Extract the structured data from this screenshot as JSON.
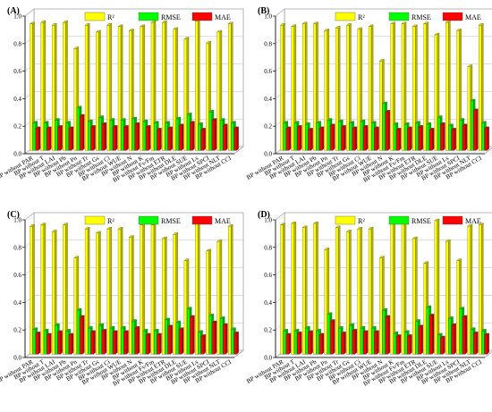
{
  "colors": {
    "r2": "#ffff00",
    "rmse": "#00ff00",
    "mae": "#ff0000"
  },
  "chart_data": [
    {
      "type": "bar",
      "panel_label": "(A)",
      "legend": [
        "R²",
        "RMSE",
        "MAE"
      ],
      "legend_position": "top-right",
      "grid": true,
      "ylim": [
        0,
        1.0
      ],
      "yticks": [
        "0.0",
        "0.2",
        "0.4",
        "0.6",
        "0.8",
        "1.0"
      ],
      "categories": [
        "BP without PAR",
        "BP without T",
        "BP without LAI",
        "BP without Pb",
        "BP without Pn",
        "BP without Tr",
        "BP without Gs",
        "BP without Ci",
        "BP without WUE",
        "BP without N",
        "BP without K",
        "BP without Fv/Fm",
        "BP without ETR",
        "BP without DLE",
        "BP without SUE",
        "BP without Ls",
        "BP without SPCI",
        "BP without NLT",
        "BP without CCI"
      ],
      "series": [
        {
          "name": "R²",
          "values": [
            0.92,
            0.93,
            0.91,
            0.93,
            0.74,
            0.91,
            0.86,
            0.91,
            0.9,
            0.87,
            0.9,
            0.93,
            0.93,
            0.88,
            0.81,
            0.94,
            0.78,
            0.86,
            0.92
          ]
        },
        {
          "name": "RMSE",
          "values": [
            0.2,
            0.2,
            0.22,
            0.2,
            0.31,
            0.21,
            0.24,
            0.22,
            0.22,
            0.23,
            0.21,
            0.2,
            0.2,
            0.23,
            0.26,
            0.19,
            0.28,
            0.22,
            0.2
          ]
        },
        {
          "name": "MAE",
          "values": [
            0.16,
            0.16,
            0.17,
            0.16,
            0.25,
            0.17,
            0.19,
            0.17,
            0.17,
            0.19,
            0.17,
            0.15,
            0.16,
            0.18,
            0.2,
            0.15,
            0.22,
            0.18,
            0.16
          ]
        }
      ]
    },
    {
      "type": "bar",
      "panel_label": "(B)",
      "legend": [
        "R²",
        "RMSE",
        "MAE"
      ],
      "legend_position": "top-right",
      "grid": true,
      "ylim": [
        0,
        1.0
      ],
      "yticks": [
        "0.0",
        "0.2",
        "0.4",
        "0.6",
        "0.8",
        "1.0"
      ],
      "categories": [
        "BP without PAR",
        "BP without T",
        "BP without LAI",
        "BP without Pb",
        "BP without Pn",
        "BP without Tr",
        "BP without Gs",
        "BP without Ci",
        "BP without WUE",
        "BP without N",
        "BP without K",
        "BP without Fv/Fm",
        "BP without ETR",
        "BP without DLE",
        "BP without SUE",
        "BP without Ls",
        "BP without SPCI",
        "BP without NLT",
        "BP without CCI"
      ],
      "series": [
        {
          "name": "R²",
          "values": [
            0.91,
            0.9,
            0.92,
            0.92,
            0.87,
            0.89,
            0.91,
            0.88,
            0.9,
            0.65,
            0.92,
            0.92,
            0.9,
            0.92,
            0.84,
            0.93,
            0.87,
            0.61,
            0.91
          ]
        },
        {
          "name": "RMSE",
          "values": [
            0.2,
            0.2,
            0.19,
            0.2,
            0.22,
            0.21,
            0.2,
            0.21,
            0.2,
            0.34,
            0.19,
            0.19,
            0.2,
            0.19,
            0.24,
            0.18,
            0.22,
            0.36,
            0.2
          ]
        },
        {
          "name": "MAE",
          "values": [
            0.16,
            0.17,
            0.15,
            0.16,
            0.18,
            0.17,
            0.16,
            0.17,
            0.16,
            0.28,
            0.15,
            0.16,
            0.17,
            0.15,
            0.19,
            0.15,
            0.18,
            0.29,
            0.16
          ]
        }
      ]
    },
    {
      "type": "bar",
      "panel_label": "(C)",
      "legend": [
        "R²",
        "RMSE",
        "MAE"
      ],
      "legend_position": "top-right",
      "grid": true,
      "ylim": [
        0,
        1.0
      ],
      "yticks": [
        "0.0",
        "0.2",
        "0.4",
        "0.6",
        "0.8",
        "1.0"
      ],
      "categories": [
        "BP without PAR",
        "BP without T",
        "BP without LAI",
        "BP without Pb",
        "BP without Pn",
        "BP without Tr",
        "BP without Gs",
        "BP without Ci",
        "BP without WUE",
        "BP without N",
        "BP without K",
        "BP without Fv/Fm",
        "BP without ETR",
        "BP without DLE",
        "BP without SUE",
        "BP without Ls",
        "BP without SPCI",
        "BP without NLT",
        "BP without CCI"
      ],
      "series": [
        {
          "name": "R²",
          "values": [
            0.93,
            0.94,
            0.89,
            0.94,
            0.7,
            0.91,
            0.88,
            0.91,
            0.91,
            0.85,
            0.94,
            0.94,
            0.84,
            0.87,
            0.68,
            0.95,
            0.75,
            0.82,
            0.93
          ]
        },
        {
          "name": "RMSE",
          "values": [
            0.18,
            0.17,
            0.21,
            0.17,
            0.32,
            0.19,
            0.21,
            0.19,
            0.19,
            0.24,
            0.17,
            0.17,
            0.25,
            0.23,
            0.33,
            0.16,
            0.28,
            0.26,
            0.18
          ]
        },
        {
          "name": "MAE",
          "values": [
            0.15,
            0.14,
            0.16,
            0.14,
            0.27,
            0.16,
            0.17,
            0.16,
            0.16,
            0.19,
            0.14,
            0.14,
            0.2,
            0.18,
            0.27,
            0.13,
            0.23,
            0.21,
            0.15
          ]
        }
      ]
    },
    {
      "type": "bar",
      "panel_label": "(D)",
      "legend": [
        "R²",
        "RMSE",
        "MAE"
      ],
      "legend_position": "top-right",
      "grid": true,
      "ylim": [
        0,
        1.0
      ],
      "yticks": [
        "0.0",
        "0.2",
        "0.4",
        "0.6",
        "0.8",
        "1.0"
      ],
      "categories": [
        "BP without PAR",
        "BP without T",
        "BP without LAI",
        "BP without Pb",
        "BP without Pn",
        "BP without Tr",
        "BP without Gs",
        "BP without Ci",
        "BP without WUE",
        "BP without N",
        "BP without K",
        "BP without Fv/Fm",
        "BP without ETR",
        "BP without DLE",
        "BP without SUE",
        "BP without Ls",
        "BP without SPCI",
        "BP without NLT",
        "BP without CCI"
      ],
      "series": [
        {
          "name": "R²",
          "values": [
            0.94,
            0.95,
            0.92,
            0.95,
            0.76,
            0.92,
            0.89,
            0.91,
            0.91,
            0.7,
            0.96,
            0.95,
            0.84,
            0.66,
            0.97,
            0.82,
            0.68,
            0.93,
            0.94
          ]
        },
        {
          "name": "RMSE",
          "values": [
            0.17,
            0.17,
            0.19,
            0.17,
            0.29,
            0.19,
            0.21,
            0.19,
            0.19,
            0.32,
            0.15,
            0.16,
            0.24,
            0.34,
            0.14,
            0.26,
            0.33,
            0.18,
            0.17
          ]
        },
        {
          "name": "MAE",
          "values": [
            0.14,
            0.15,
            0.16,
            0.14,
            0.24,
            0.15,
            0.17,
            0.16,
            0.16,
            0.27,
            0.13,
            0.13,
            0.2,
            0.28,
            0.12,
            0.21,
            0.27,
            0.15,
            0.14
          ]
        }
      ]
    }
  ]
}
